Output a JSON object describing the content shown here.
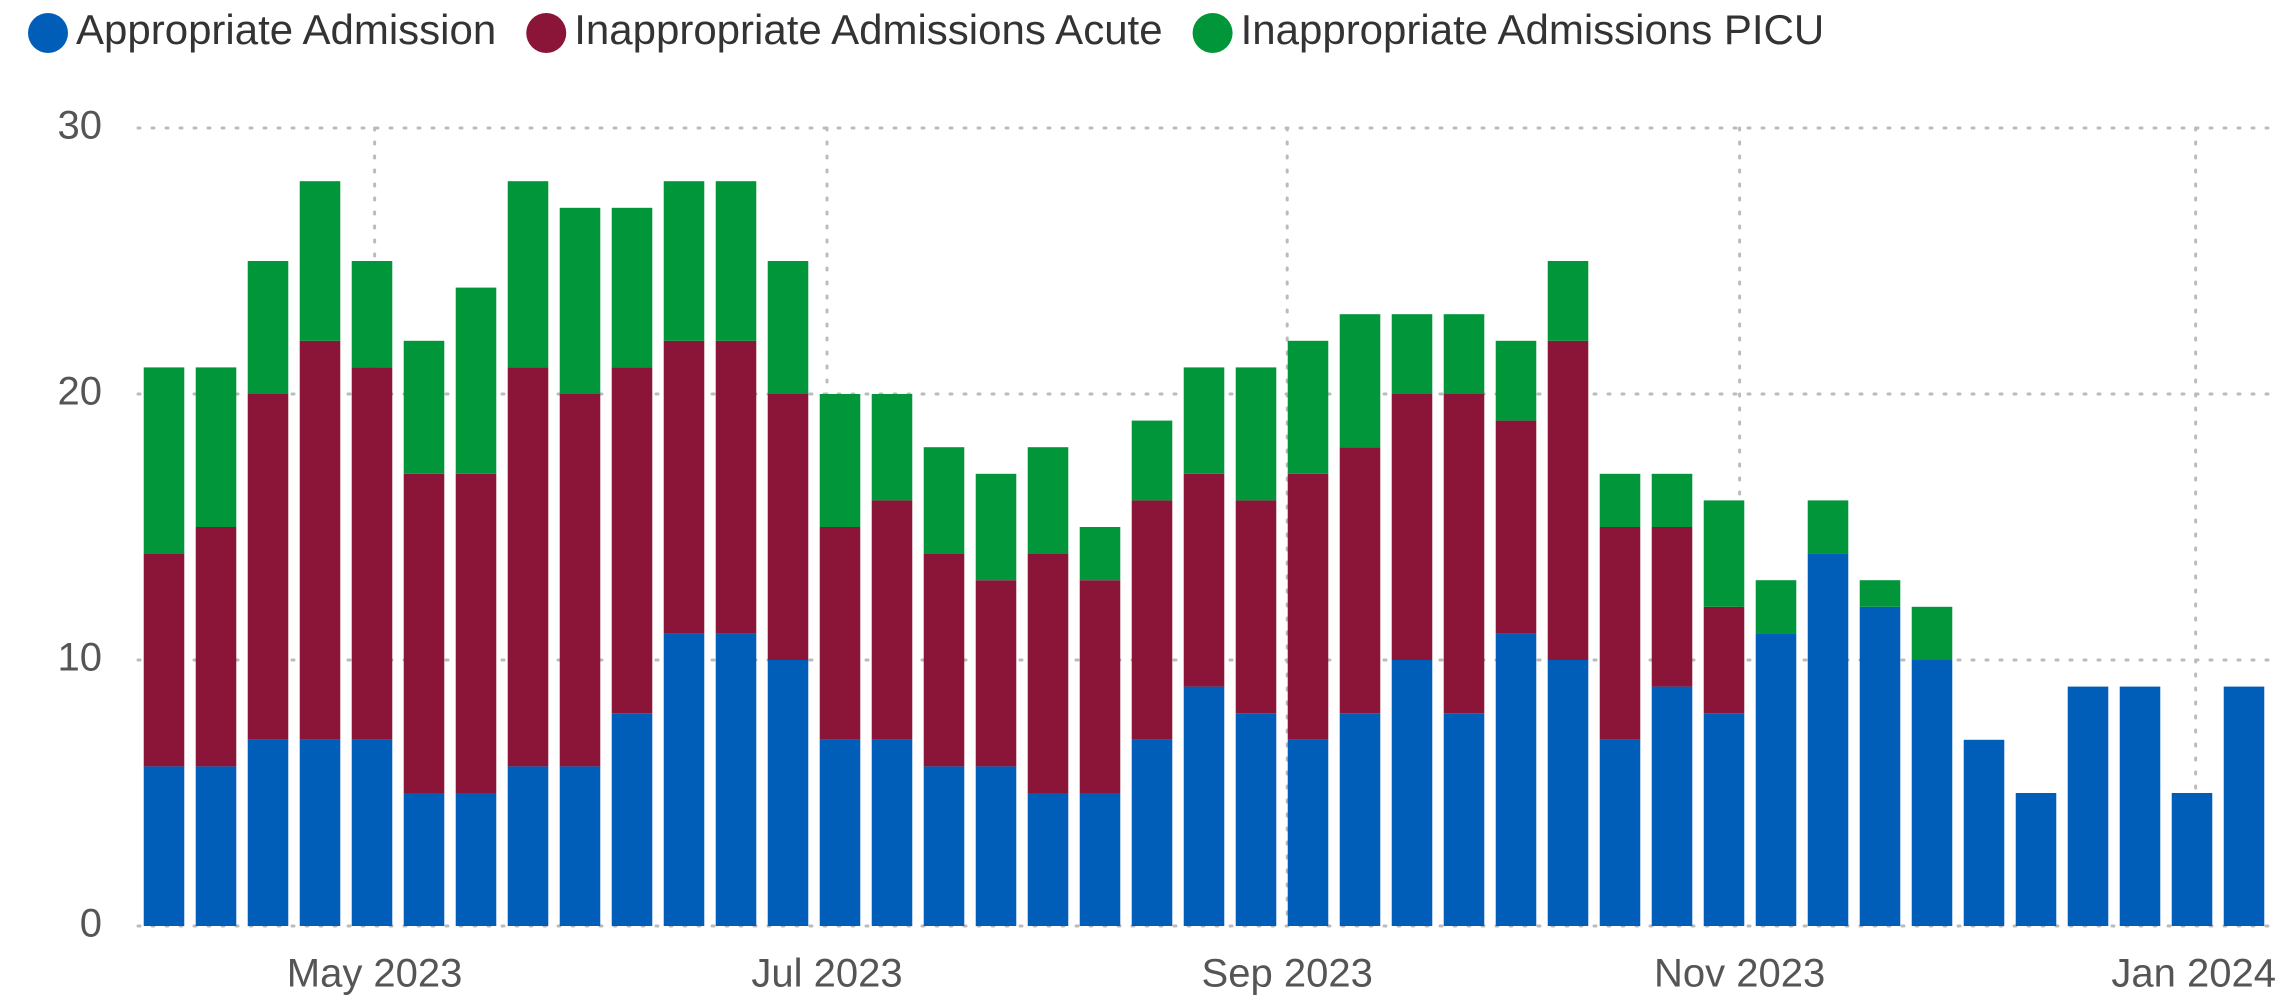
{
  "chart_data": {
    "type": "bar",
    "stacked": true,
    "categories": [
      null,
      null,
      null,
      null,
      null,
      null,
      null,
      null,
      null,
      null,
      null,
      null,
      null,
      null,
      null,
      null,
      null,
      null,
      null,
      null,
      null,
      null,
      null,
      null,
      null,
      null,
      null,
      null,
      null,
      null,
      null,
      null,
      null,
      null,
      null,
      null,
      null,
      null,
      null,
      null,
      null
    ],
    "series": [
      {
        "name": "Appropriate Admission",
        "color": "#005EB8",
        "values": [
          6,
          6,
          7,
          7,
          7,
          5,
          5,
          6,
          6,
          8,
          11,
          11,
          10,
          7,
          7,
          6,
          6,
          5,
          5,
          7,
          9,
          8,
          7,
          8,
          10,
          8,
          11,
          10,
          7,
          9,
          8,
          11,
          14,
          12,
          10,
          7,
          5,
          9,
          9,
          5,
          9
        ]
      },
      {
        "name": "Inappropriate Admissions Acute",
        "color": "#8A1538",
        "values": [
          8,
          9,
          13,
          15,
          14,
          12,
          12,
          15,
          14,
          13,
          11,
          11,
          10,
          8,
          9,
          8,
          7,
          9,
          8,
          9,
          8,
          8,
          10,
          10,
          10,
          12,
          8,
          12,
          8,
          6,
          4,
          0,
          0,
          0,
          0,
          0,
          0,
          0,
          0,
          0,
          0
        ]
      },
      {
        "name": "Inappropriate Admissions PICU",
        "color": "#009639",
        "values": [
          7,
          6,
          5,
          6,
          4,
          5,
          7,
          7,
          7,
          6,
          6,
          6,
          5,
          5,
          4,
          4,
          4,
          4,
          2,
          3,
          4,
          5,
          5,
          5,
          3,
          3,
          3,
          3,
          2,
          2,
          4,
          2,
          2,
          1,
          2,
          0,
          0,
          0,
          0,
          0,
          0
        ]
      }
    ],
    "xlim": [
      -0.5,
      40.5
    ],
    "xticks": [
      {
        "value": 4.05,
        "label": "May 2023"
      },
      {
        "value": 12.75,
        "label": "Jul 2023"
      },
      {
        "value": 21.6,
        "label": "Sep 2023"
      },
      {
        "value": 30.3,
        "label": "Nov 2023"
      },
      {
        "value": 39.07,
        "label": "Jan 2024"
      }
    ],
    "ylim": [
      0,
      30
    ],
    "yticks": [
      0,
      10,
      20,
      30
    ],
    "grid": true,
    "legend": "top-left"
  }
}
